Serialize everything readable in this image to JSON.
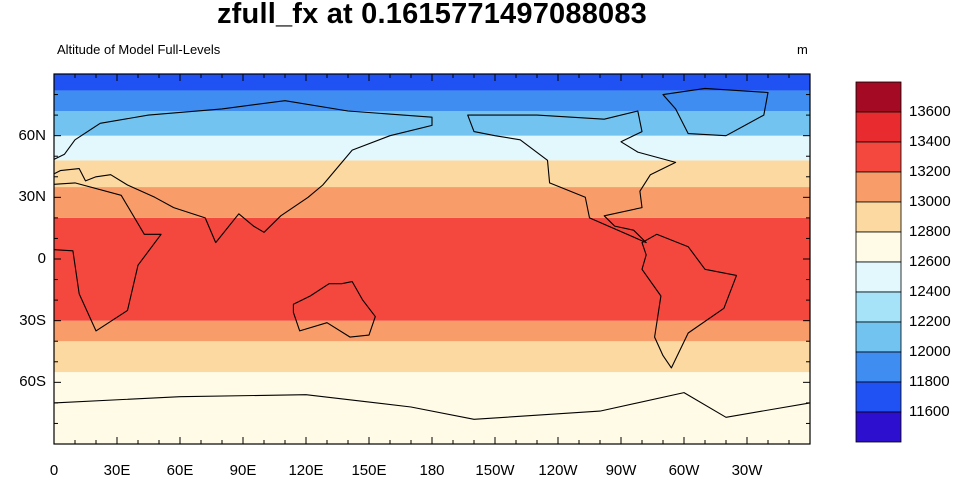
{
  "title": "zfull_fx at 0.1615771497088083",
  "left_label": "Altitude of Model Full-Levels",
  "right_label": "m",
  "chart_data": {
    "type": "heatmap",
    "title": "zfull_fx at 0.1615771497088083",
    "subtitle_left": "Altitude of Model Full-Levels",
    "units": "m",
    "x_ticks": [
      "0",
      "30E",
      "60E",
      "90E",
      "120E",
      "150E",
      "180",
      "150W",
      "120W",
      "90W",
      "60W",
      "30W"
    ],
    "y_ticks": [
      "60N",
      "30N",
      "0",
      "30S",
      "60S"
    ],
    "x_range": [
      0,
      360
    ],
    "y_range": [
      -90,
      90
    ],
    "colorbar_levels": [
      13600,
      13400,
      13200,
      13000,
      12800,
      12600,
      12400,
      12200,
      12000,
      11800,
      11600
    ],
    "colorbar_colors": [
      "#a50a24",
      "#e82b2f",
      "#f4473e",
      "#f89d69",
      "#fcd9a0",
      "#fffbe6",
      "#e2f8fd",
      "#a6e3f8",
      "#72c3f0",
      "#3f8df0",
      "#2051f2",
      "#2d0fd0"
    ],
    "bands": [
      {
        "lat": [
          -90,
          -75
        ],
        "value": 12600
      },
      {
        "lat": [
          -75,
          -55
        ],
        "value": 12700
      },
      {
        "lat": [
          -55,
          -40
        ],
        "value": 12900
      },
      {
        "lat": [
          -40,
          -30
        ],
        "value": 13100
      },
      {
        "lat": [
          -30,
          20
        ],
        "value": 13300
      },
      {
        "lat": [
          20,
          35
        ],
        "value": 13100
      },
      {
        "lat": [
          35,
          48
        ],
        "value": 12800
      },
      {
        "lat": [
          48,
          60
        ],
        "value": 12400
      },
      {
        "lat": [
          60,
          72
        ],
        "value": 12100
      },
      {
        "lat": [
          72,
          82
        ],
        "value": 11900
      },
      {
        "lat": [
          82,
          90
        ],
        "value": 11700
      }
    ]
  }
}
